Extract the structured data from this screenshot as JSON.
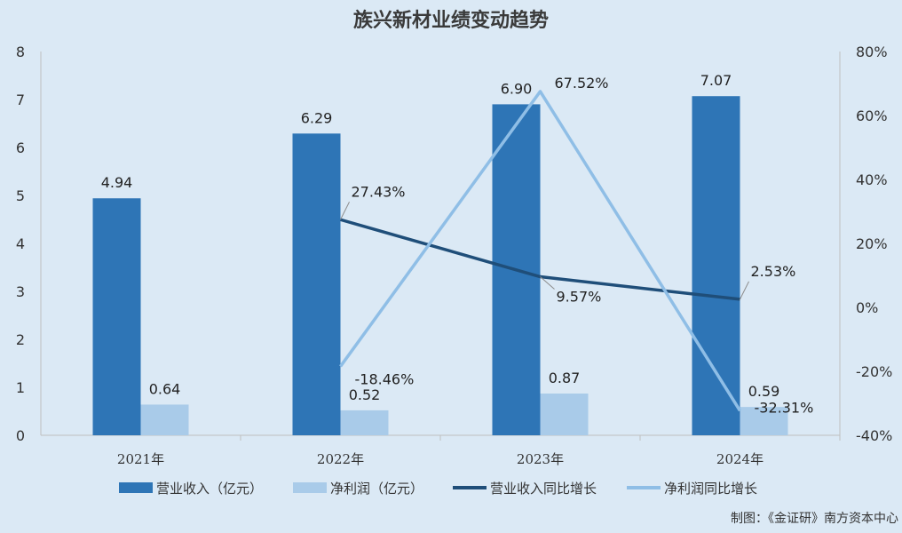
{
  "chart_data": {
    "type": "bar+line",
    "title": "族兴新材业绩变动趋势",
    "categories": [
      "2021年",
      "2022年",
      "2023年",
      "2024年"
    ],
    "y_left": {
      "lim": [
        0,
        8
      ],
      "ticks": [
        "0",
        "1",
        "2",
        "3",
        "4",
        "5",
        "6",
        "7",
        "8"
      ]
    },
    "y_right": {
      "lim": [
        -40,
        80
      ],
      "ticks": [
        "-40%",
        "-20%",
        "0%",
        "20%",
        "40%",
        "60%",
        "80%"
      ]
    },
    "bar_series": [
      {
        "name": "营业收入（亿元）",
        "color": "#2e75b6",
        "values": [
          4.94,
          6.29,
          6.9,
          7.07
        ],
        "labels": [
          "4.94",
          "6.29",
          "6.90",
          "7.07"
        ]
      },
      {
        "name": "净利润（亿元）",
        "color": "#a9cbe9",
        "values": [
          0.64,
          0.52,
          0.87,
          0.59
        ],
        "labels": [
          "0.64",
          "0.52",
          "0.87",
          "0.59"
        ]
      }
    ],
    "line_series": [
      {
        "name": "营业收入同比增长",
        "color": "#1f4e79",
        "values": [
          null,
          27.43,
          9.57,
          2.53
        ],
        "labels": [
          "",
          "27.43%",
          "9.57%",
          "2.53%"
        ]
      },
      {
        "name": "净利润同比增长",
        "color": "#8fbee6",
        "values": [
          null,
          -18.46,
          67.52,
          -32.31
        ],
        "labels": [
          "",
          "-18.46%",
          "67.52%",
          "-32.31%"
        ]
      }
    ],
    "grid": false,
    "legend_position": "bottom",
    "source": "制图：《金证研》南方资本中心"
  }
}
